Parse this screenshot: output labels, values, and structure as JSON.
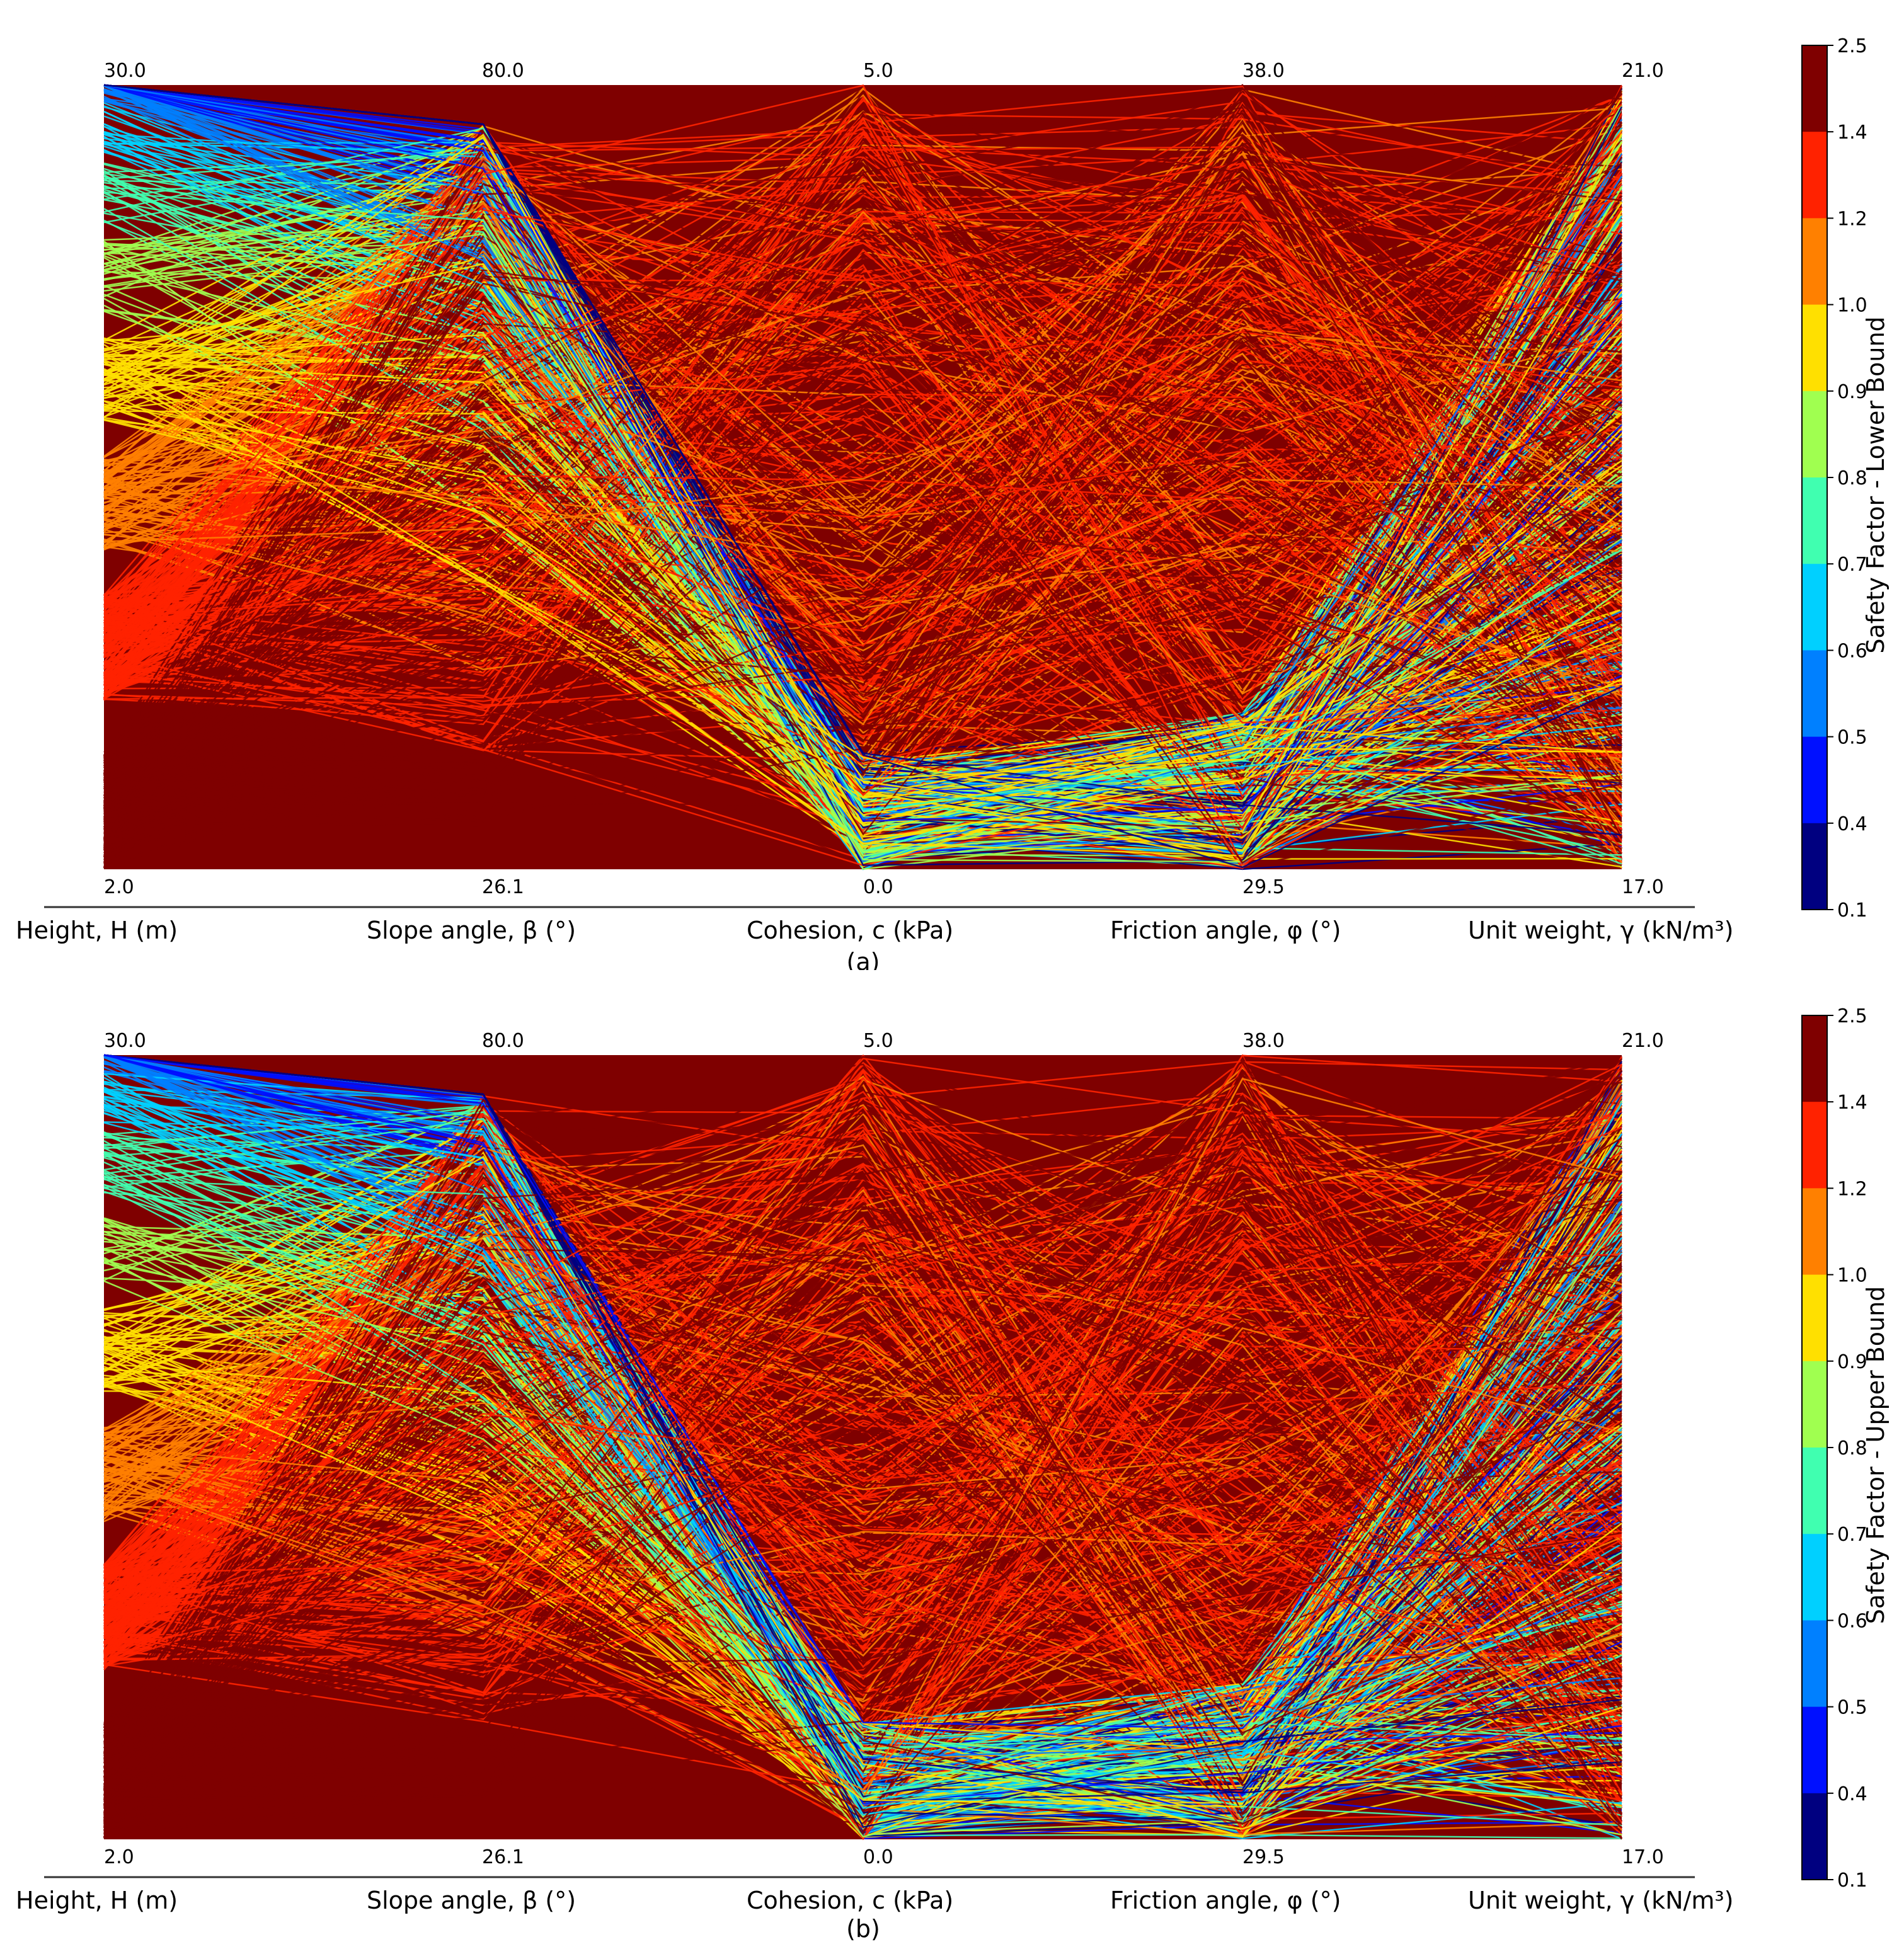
{
  "chart_data": [
    {
      "panel": "a",
      "caption": "(a)",
      "type": "parallel_coordinates",
      "axes": [
        {
          "label": "Height, H (m)",
          "min": "2.0",
          "max": "30.0"
        },
        {
          "label": "Slope angle, β (°)",
          "min": "26.1",
          "max": "80.0"
        },
        {
          "label": "Cohesion, c (kPa)",
          "min": "0.0",
          "max": "5.0"
        },
        {
          "label": "Friction angle, φ (°)",
          "min": "29.5",
          "max": "38.0"
        },
        {
          "label": "Unit weight, γ (kN/m³)",
          "min": "17.0",
          "max": "21.0"
        }
      ],
      "colorbar": {
        "label": "Safety Factor - Lower Bound",
        "ticks": [
          "2.5",
          "1.4",
          "1.2",
          "1.0",
          "0.9",
          "0.8",
          "0.7",
          "0.6",
          "0.5",
          "0.4",
          "0.1"
        ],
        "colors": [
          "#7f0000",
          "#ff2200",
          "#ff8000",
          "#ffe000",
          "#a0ff50",
          "#40ffb0",
          "#00d0ff",
          "#0080ff",
          "#0010ff",
          "#000080"
        ]
      }
    },
    {
      "panel": "b",
      "caption": "(b)",
      "type": "parallel_coordinates",
      "axes": [
        {
          "label": "Height, H (m)",
          "min": "2.0",
          "max": "30.0"
        },
        {
          "label": "Slope angle, β (°)",
          "min": "26.1",
          "max": "80.0"
        },
        {
          "label": "Cohesion, c (kPa)",
          "min": "0.0",
          "max": "5.0"
        },
        {
          "label": "Friction angle, φ (°)",
          "min": "29.5",
          "max": "38.0"
        },
        {
          "label": "Unit weight, γ (kN/m³)",
          "min": "17.0",
          "max": "21.0"
        }
      ],
      "colorbar": {
        "label": "Safety Factor - Upper Bound",
        "ticks": [
          "2.5",
          "1.4",
          "1.2",
          "1.0",
          "0.9",
          "0.8",
          "0.7",
          "0.6",
          "0.5",
          "0.4",
          "0.1"
        ],
        "colors": [
          "#7f0000",
          "#ff2200",
          "#ff8000",
          "#ffe000",
          "#a0ff50",
          "#40ffb0",
          "#00d0ff",
          "#0080ff",
          "#0010ff",
          "#000080"
        ]
      }
    }
  ]
}
